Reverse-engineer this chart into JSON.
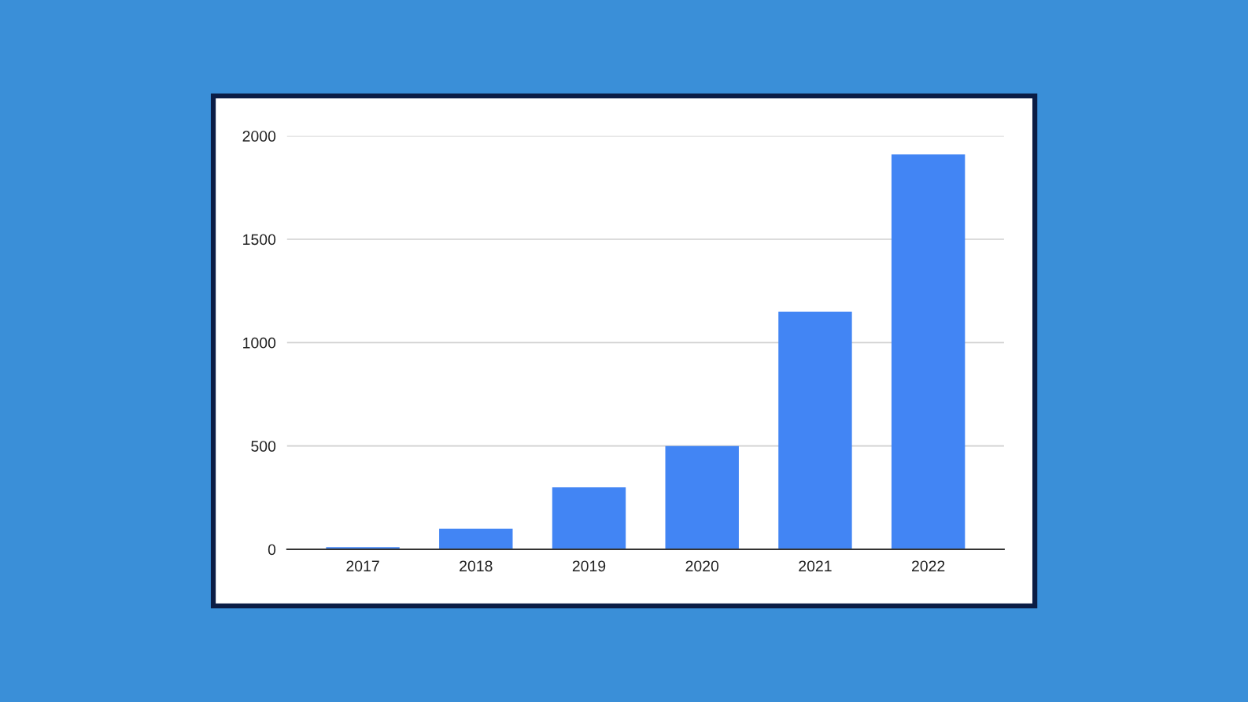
{
  "chart_data": {
    "type": "bar",
    "categories": [
      "2017",
      "2018",
      "2019",
      "2020",
      "2021",
      "2022"
    ],
    "values": [
      10,
      100,
      300,
      500,
      1150,
      1910
    ],
    "color": "#4285f4",
    "ylim": [
      0,
      2000
    ],
    "yticks": [
      0,
      500,
      1000,
      1500,
      2000
    ],
    "grid": "y"
  }
}
